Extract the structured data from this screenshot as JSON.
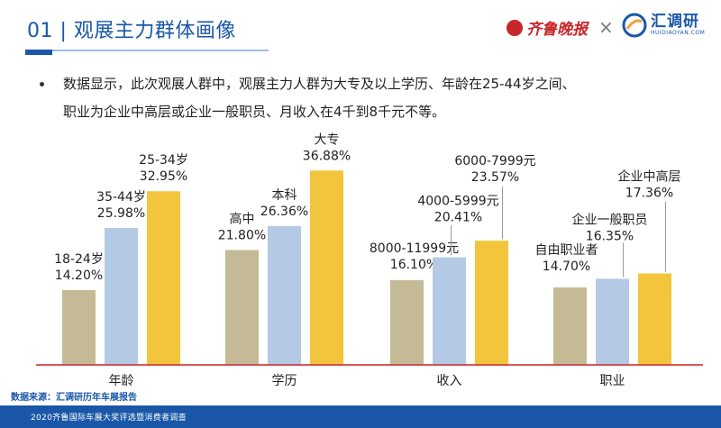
{
  "header": {
    "title": "01 | 观展主力群体画像",
    "brand_left": "齐鲁晚报",
    "brand_separator": "×",
    "brand_right_cn": "汇调研",
    "brand_right_en": "HUIDIAOYAN.COM"
  },
  "bullet": {
    "line1": "数据显示，此次观展人群中，观展主力人群为大专及以上学历、年龄在25-44岁之间、",
    "line2": "职业为企业中高层或企业一般职员、月收入在4千到8千元不等。"
  },
  "source": "数据来源：汇调研历年车展报告",
  "footer": "2020齐鲁国际车展大奖评选暨消费者调查",
  "colors": {
    "series": [
      "#c4bb96",
      "#b4c9e4",
      "#f2c53d"
    ],
    "axis": "#c8262b",
    "title": "#1a57a8",
    "connector": "#9a9a9a"
  },
  "chart_data": {
    "type": "bar",
    "ylim": [
      0,
      40
    ],
    "groups": [
      {
        "category": "年龄",
        "bars": [
          {
            "label": "18-24岁",
            "value": 14.2,
            "display": "14.20%"
          },
          {
            "label": "35-44岁",
            "value": 25.98,
            "display": "25.98%"
          },
          {
            "label": "25-34岁",
            "value": 32.95,
            "display": "32.95%"
          }
        ]
      },
      {
        "category": "学历",
        "bars": [
          {
            "label": "高中",
            "value": 21.8,
            "display": "21.80%"
          },
          {
            "label": "本科",
            "value": 26.36,
            "display": "26.36%"
          },
          {
            "label": "大专",
            "value": 36.88,
            "display": "36.88%"
          }
        ]
      },
      {
        "category": "收入",
        "bars": [
          {
            "label": "8000-11999元",
            "value": 16.1,
            "display": "16.10%"
          },
          {
            "label": "4000-5999元",
            "value": 20.41,
            "display": "20.41%"
          },
          {
            "label": "6000-7999元",
            "value": 23.57,
            "display": "23.57%"
          }
        ]
      },
      {
        "category": "职业",
        "bars": [
          {
            "label": "自由职业者",
            "value": 14.7,
            "display": "14.70%"
          },
          {
            "label": "企业一般职员",
            "value": 16.35,
            "display": "16.35%"
          },
          {
            "label": "企业中高层",
            "value": 17.36,
            "display": "17.36%"
          }
        ]
      }
    ]
  }
}
